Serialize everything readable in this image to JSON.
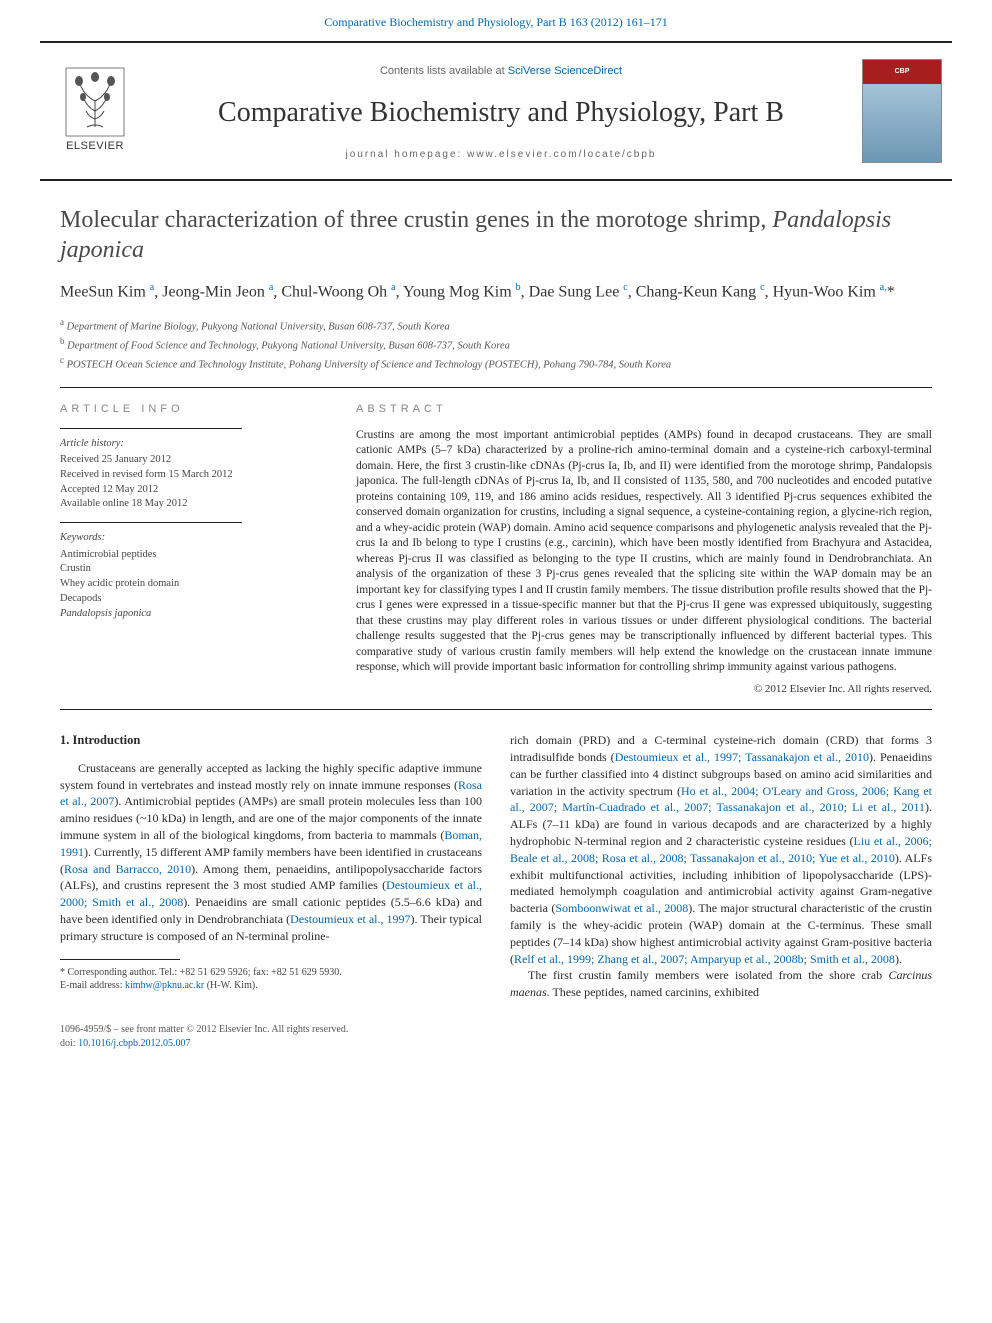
{
  "top_link": {
    "citation": "Comparative Biochemistry and Physiology, Part B 163 (2012) 161–171"
  },
  "header": {
    "contents_prefix": "Contents lists available at ",
    "contents_link": "SciVerse ScienceDirect",
    "journal": "Comparative Biochemistry and Physiology, Part B",
    "homepage": "journal homepage: www.elsevier.com/locate/cbpb",
    "publisher_label": "ELSEVIER",
    "cover_badge": "CBP"
  },
  "article": {
    "title_plain": "Molecular characterization of three crustin genes in the morotoge shrimp, ",
    "title_species": "Pandalopsis japonica",
    "authors_html": "MeeSun Kim <sup>a</sup>, Jeong-Min Jeon <sup>a</sup>, Chul-Woong Oh <sup>a</sup>, Young Mog Kim <sup>b</sup>, Dae Sung Lee <sup>c</sup>, Chang-Keun Kang <sup>c</sup>, Hyun-Woo Kim <sup>a,</sup>*",
    "affils": [
      {
        "sup": "a",
        "text": "Department of Marine Biology, Pukyong National University, Busan 608-737, South Korea"
      },
      {
        "sup": "b",
        "text": "Department of Food Science and Technology, Pukyong National University, Busan 608-737, South Korea"
      },
      {
        "sup": "c",
        "text": "POSTECH Ocean Science and Technology Institute, Pohang University of Science and Technology (POSTECH), Pohang 790-784, South Korea"
      }
    ]
  },
  "article_info": {
    "heading": "article info",
    "history_label": "Article history:",
    "history": [
      "Received 25 January 2012",
      "Received in revised form 15 March 2012",
      "Accepted 12 May 2012",
      "Available online 18 May 2012"
    ],
    "keywords_label": "Keywords:",
    "keywords": [
      "Antimicrobial peptides",
      "Crustin",
      "Whey acidic protein domain",
      "Decapods",
      "Pandalopsis japonica"
    ]
  },
  "abstract": {
    "heading": "abstract",
    "text": "Crustins are among the most important antimicrobial peptides (AMPs) found in decapod crustaceans. They are small cationic AMPs (5–7 kDa) characterized by a proline-rich amino-terminal domain and a cysteine-rich carboxyl-terminal domain. Here, the first 3 crustin-like cDNAs (Pj-crus Ia, Ib, and II) were identified from the morotoge shrimp, Pandalopsis japonica. The full-length cDNAs of Pj-crus Ia, Ib, and II consisted of 1135, 580, and 700 nucleotides and encoded putative proteins containing 109, 119, and 186 amino acids residues, respectively. All 3 identified Pj-crus sequences exhibited the conserved domain organization for crustins, including a signal sequence, a cysteine-containing region, a glycine-rich region, and a whey-acidic protein (WAP) domain. Amino acid sequence comparisons and phylogenetic analysis revealed that the Pj-crus Ia and Ib belong to type I crustins (e.g., carcinin), which have been mostly identified from Brachyura and Astacidea, whereas Pj-crus II was classified as belonging to the type II crustins, which are mainly found in Dendrobranchiata. An analysis of the organization of these 3 Pj-crus genes revealed that the splicing site within the WAP domain may be an important key for classifying types I and II crustin family members. The tissue distribution profile results showed that the Pj-crus I genes were expressed in a tissue-specific manner but that the Pj-crus II gene was expressed ubiquitously, suggesting that these crustins may play different roles in various tissues or under different physiological conditions. The bacterial challenge results suggested that the Pj-crus genes may be transcriptionally influenced by different bacterial types. This comparative study of various crustin family members will help extend the knowledge on the crustacean innate immune response, which will provide important basic information for controlling shrimp immunity against various pathogens.",
    "copyright": "© 2012 Elsevier Inc. All rights reserved."
  },
  "body": {
    "section_heading": "1. Introduction",
    "left_para": "Crustaceans are generally accepted as lacking the highly specific adaptive immune system found in vertebrates and instead mostly rely on innate immune responses (Rosa et al., 2007). Antimicrobial peptides (AMPs) are small protein molecules less than 100 amino residues (~10 kDa) in length, and are one of the major components of the innate immune system in all of the biological kingdoms, from bacteria to mammals (Boman, 1991). Currently, 15 different AMP family members have been identified in crustaceans (Rosa and Barracco, 2010). Among them, penaeidins, antilipopolysaccharide factors (ALFs), and crustins represent the 3 most studied AMP families (Destoumieux et al., 2000; Smith et al., 2008). Penaeidins are small cationic peptides (5.5–6.6 kDa) and have been identified only in Dendrobranchiata (Destoumieux et al., 1997). Their typical primary structure is composed of an N-terminal proline-",
    "right_para": "rich domain (PRD) and a C-terminal cysteine-rich domain (CRD) that forms 3 intradisulfide bonds (Destoumieux et al., 1997; Tassanakajon et al., 2010). Penaeidins can be further classified into 4 distinct subgroups based on amino acid similarities and variation in the activity spectrum (Ho et al., 2004; O'Leary and Gross, 2006; Kang et al., 2007; Martín-Cuadrado et al., 2007; Tassanakajon et al., 2010; Li et al., 2011). ALFs (7–11 kDa) are found in various decapods and are characterized by a highly hydrophobic N-terminal region and 2 characteristic cysteine residues (Liu et al., 2006; Beale et al., 2008; Rosa et al., 2008; Tassanakajon et al., 2010; Yue et al., 2010). ALFs exhibit multifunctional activities, including inhibition of lipopolysaccharide (LPS)-mediated hemolymph coagulation and antimicrobial activity against Gram-negative bacteria (Somboonwiwat et al., 2008). The major structural characteristic of the crustin family is the whey-acidic protein (WAP) domain at the C-terminus. These small peptides (7–14 kDa) show highest antimicrobial activity against Gram-positive bacteria (Relf et al., 1999; Zhang et al., 2007; Amparyup et al., 2008b; Smith et al., 2008).",
    "right_para2": "The first crustin family members were isolated from the shore crab Carcinus maenas. These peptides, named carcinins, exhibited"
  },
  "footnote": {
    "corr": "* Corresponding author. Tel.: +82 51 629 5926; fax: +82 51 629 5930.",
    "email_label": "E-mail address: ",
    "email": "kimhw@pknu.ac.kr",
    "email_suffix": " (H-W. Kim)."
  },
  "footer": {
    "issn": "1096-4959/$ – see front matter © 2012 Elsevier Inc. All rights reserved.",
    "doi_label": "doi:",
    "doi": "10.1016/j.cbpb.2012.05.007"
  },
  "colors": {
    "link": "#0066b3",
    "cover_red": "#a81e1e",
    "cover_blue_top": "#a4c3d9",
    "cover_blue_bottom": "#6d97b4"
  }
}
